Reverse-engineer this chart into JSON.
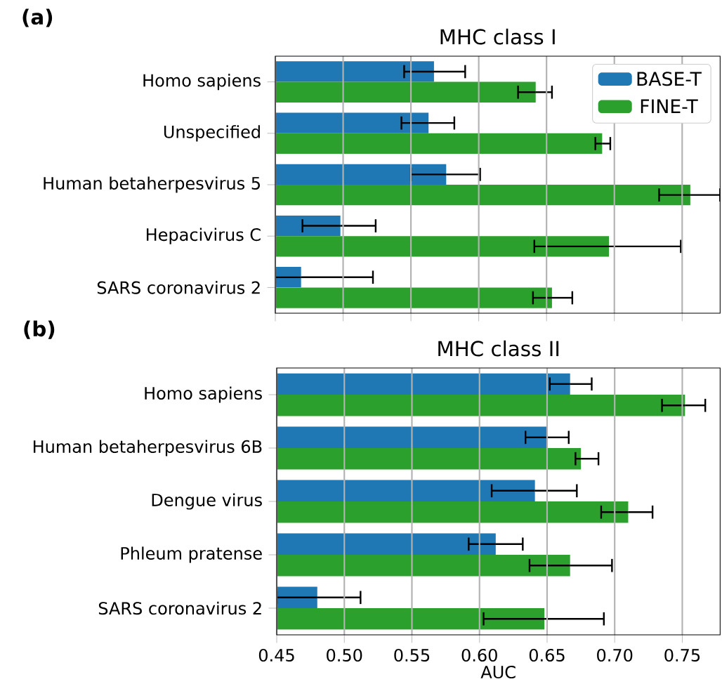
{
  "chart_data": [
    {
      "type": "bar",
      "orientation": "horizontal",
      "title": "MHC class I",
      "annotations": [
        "(a)"
      ],
      "categories": [
        "Homo sapiens",
        "Unspecified",
        "Human betaherpesvirus 5",
        "Hepacivirus C",
        "SARS coronavirus 2"
      ],
      "series": [
        {
          "name": "BASE-T",
          "color": "#1f77b4",
          "values": [
            0.567,
            0.563,
            0.576,
            0.498,
            0.469
          ],
          "errors": [
            [
              0.545,
              0.59
            ],
            [
              0.543,
              0.582
            ],
            [
              0.55,
              0.601
            ],
            [
              0.47,
              0.524
            ],
            [
              0.45,
              0.522
            ]
          ]
        },
        {
          "name": "FINE-T",
          "color": "#2ca02c",
          "values": [
            0.642,
            0.691,
            0.756,
            0.696,
            0.654
          ],
          "errors": [
            [
              0.629,
              0.654
            ],
            [
              0.686,
              0.697
            ],
            [
              0.733,
              0.778
            ],
            [
              0.641,
              0.749
            ],
            [
              0.64,
              0.669
            ]
          ]
        }
      ],
      "xlim": [
        0.45,
        0.778
      ],
      "xticks": [
        {
          "value": 0.45,
          "label": null
        },
        {
          "value": 0.5,
          "label": null
        },
        {
          "value": 0.55,
          "label": null
        },
        {
          "value": 0.6,
          "label": null
        },
        {
          "value": 0.65,
          "label": null
        },
        {
          "value": 0.7,
          "label": null
        },
        {
          "value": 0.75,
          "label": null
        }
      ],
      "grid": "x",
      "legend": "top right",
      "tick_labels": "y"
    },
    {
      "type": "bar",
      "orientation": "horizontal",
      "title": "MHC class II",
      "annotations": [
        "(b)"
      ],
      "xlabel": "AUC",
      "categories": [
        "Homo sapiens",
        "Human betaherpesvirus 6B",
        "Dengue virus",
        "Phleum pratense",
        "SARS coronavirus 2"
      ],
      "series": [
        {
          "color": "#1f77b4",
          "values": [
            0.667,
            0.65,
            0.641,
            0.612,
            0.48
          ],
          "errors": [
            [
              0.652,
              0.683
            ],
            [
              0.634,
              0.666
            ],
            [
              0.609,
              0.672
            ],
            [
              0.592,
              0.632
            ],
            [
              0.45,
              0.512
            ]
          ]
        },
        {
          "color": "#2ca02c",
          "values": [
            0.752,
            0.675,
            0.71,
            0.667,
            0.648
          ],
          "errors": [
            [
              0.735,
              0.767
            ],
            [
              0.671,
              0.688
            ],
            [
              0.69,
              0.728
            ],
            [
              0.637,
              0.698
            ],
            [
              0.603,
              0.692
            ]
          ]
        }
      ],
      "xlim": [
        0.45,
        0.778
      ],
      "xticks": [
        {
          "value": 0.45,
          "label": "0.45"
        },
        {
          "value": 0.5,
          "label": "0.50"
        },
        {
          "value": 0.55,
          "label": "0.55"
        },
        {
          "value": 0.6,
          "label": "0.60"
        },
        {
          "value": 0.65,
          "label": "0.65"
        },
        {
          "value": 0.7,
          "label": "0.70"
        },
        {
          "value": 0.75,
          "label": "0.75"
        }
      ],
      "grid": "x"
    }
  ]
}
